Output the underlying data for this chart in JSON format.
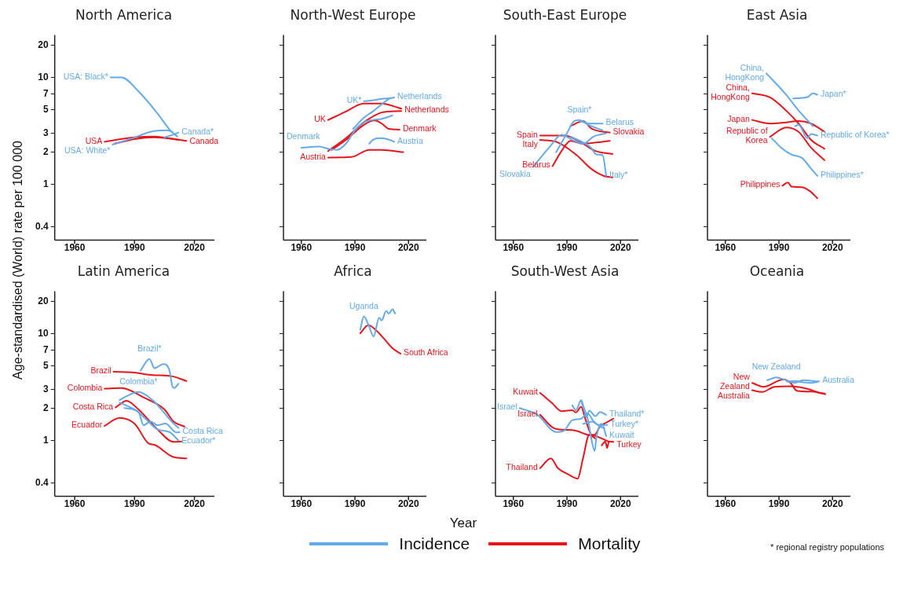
{
  "chart_data": [
    {
      "type": "line",
      "title": "North America",
      "ylabel": "Age-standardised (World) rate per 100 000",
      "xlim": [
        1950,
        2030
      ],
      "xticks": [
        1960,
        1990,
        2020
      ],
      "ylim": [
        0.3,
        25
      ],
      "yticks": [
        0.4,
        1,
        2,
        3,
        5,
        7,
        10,
        20
      ],
      "log": true,
      "series": [
        {
          "color": "#64aaea",
          "x": [
            1978,
            1983.5,
            1992,
            2001.5,
            2008.5,
            2011.5
          ],
          "values": [
            10,
            10,
            7.4,
            4.6,
            3.1,
            2.8
          ]
        },
        {
          "color": "#64aaea",
          "x": [
            1979,
            1989,
            1998,
            2006,
            2009
          ],
          "values": [
            2.35,
            2.7,
            3.1,
            3.2,
            3.1
          ]
        },
        {
          "color": "#64aaea",
          "x": [
            2005,
            2009,
            2012
          ],
          "values": [
            2.75,
            2.9,
            3.05
          ]
        },
        {
          "color": "#e8141c",
          "x": [
            1975,
            1990,
            2000,
            2012
          ],
          "values": [
            2.5,
            2.75,
            2.8,
            2.6
          ]
        },
        {
          "color": "#e8141c",
          "x": [
            1980,
            1990,
            2000,
            2010,
            2016
          ],
          "values": [
            2.4,
            2.65,
            2.75,
            2.65,
            2.55
          ]
        }
      ],
      "annotations": [
        {
          "text": "USA: Black*",
          "x": 1978,
          "y": 10
        },
        {
          "text": "USA: White*",
          "x": 1979,
          "y": 2.35
        },
        {
          "text": "Canada*",
          "x": 2012,
          "y": 3.05
        },
        {
          "text": "USA",
          "x": 1975,
          "y": 2.5
        },
        {
          "text": "Canada",
          "x": 2016,
          "y": 2.55
        }
      ]
    },
    {
      "type": "line",
      "title": "North-West Europe",
      "xlim": [
        1950,
        2030
      ],
      "xticks": [
        1960,
        1990,
        2020
      ],
      "ylim": [
        0.3,
        25
      ],
      "yticks": [
        0.4,
        1,
        2,
        3,
        5,
        7,
        10,
        20
      ],
      "log": true,
      "tick_labels": "x",
      "series": [
        {
          "color": "#64aaea",
          "x": [
            1995,
            2000,
            2005,
            2010
          ],
          "values": [
            6.0,
            6.1,
            6.3,
            6.4
          ]
        },
        {
          "color": "#64aaea",
          "x": [
            1989,
            1995,
            2000,
            2005,
            2009,
            2012
          ],
          "values": [
            3.3,
            4.2,
            4.8,
            5.6,
            6.3,
            6.5
          ]
        },
        {
          "color": "#64aaea",
          "x": [
            1960,
            1970,
            1975,
            1980,
            1985,
            1990,
            1995,
            2000,
            2005,
            2011
          ],
          "values": [
            2.2,
            2.25,
            2.15,
            2.1,
            2.4,
            3.2,
            3.8,
            4.0,
            4.1,
            4.4
          ]
        },
        {
          "color": "#64aaea",
          "x": [
            1998,
            2000,
            2004,
            2008,
            2012
          ],
          "values": [
            2.4,
            2.6,
            2.7,
            2.65,
            2.5
          ]
        },
        {
          "color": "#e8141c",
          "x": [
            1975,
            1985,
            1995,
            2005,
            2016
          ],
          "values": [
            4.0,
            4.8,
            5.7,
            5.7,
            5.1
          ]
        },
        {
          "color": "#e8141c",
          "x": [
            1975,
            1985,
            1995,
            2000,
            2005,
            2016
          ],
          "values": [
            2.05,
            2.7,
            3.8,
            4.3,
            4.7,
            4.85
          ]
        },
        {
          "color": "#e8141c",
          "x": [
            1977,
            1985,
            1995,
            2001,
            2005,
            2009,
            2015
          ],
          "values": [
            2.1,
            2.6,
            3.6,
            3.95,
            3.7,
            3.3,
            3.25
          ]
        },
        {
          "color": "#e8141c",
          "x": [
            1975,
            1988,
            1998,
            2005,
            2017
          ],
          "values": [
            1.78,
            1.8,
            2.1,
            2.1,
            2.0
          ]
        }
      ],
      "annotations": [
        {
          "text": "UK*",
          "x": 1995,
          "y": 6.0
        },
        {
          "text": "Netherlands",
          "x": 2012,
          "y": 6.5
        },
        {
          "text": "Denmark",
          "x": 1960,
          "y": 2.2
        },
        {
          "text": "Austria",
          "x": 2012,
          "y": 2.5
        },
        {
          "text": "UK",
          "x": 1975,
          "y": 4.0
        },
        {
          "text": "Netherlands",
          "x": 2016,
          "y": 4.85
        },
        {
          "text": "Denmark",
          "x": 2015,
          "y": 3.25
        },
        {
          "text": "Austria",
          "x": 1975,
          "y": 1.78
        }
      ]
    },
    {
      "type": "line",
      "title": "South-East Europe",
      "xlim": [
        1950,
        2030
      ],
      "xticks": [
        1960,
        1990,
        2020
      ],
      "ylim": [
        0.3,
        25
      ],
      "yticks": [
        0.4,
        1,
        2,
        3,
        5,
        7,
        10,
        20
      ],
      "log": true,
      "tick_labels": "x",
      "series": [
        {
          "color": "#64aaea",
          "x": [
            1971,
            1980,
            1987,
            1993,
            1999,
            2005,
            2012
          ],
          "values": [
            1.45,
            2.2,
            2.9,
            2.6,
            2.4,
            2.8,
            3.0
          ]
        },
        {
          "color": "#64aaea",
          "x": [
            1984,
            1990,
            1994,
            1997,
            2002,
            2010
          ],
          "values": [
            2.0,
            3.0,
            3.9,
            4.0,
            3.6,
            3.2
          ]
        },
        {
          "color": "#64aaea",
          "x": [
            1997,
            2003,
            2010
          ],
          "values": [
            3.9,
            3.7,
            3.7
          ]
        },
        {
          "color": "#64aaea",
          "x": [
            1992,
            2003.5,
            2006.5,
            2010,
            2012
          ],
          "values": [
            2.8,
            2.2,
            1.9,
            1.87,
            1.2
          ]
        },
        {
          "color": "#e8141c",
          "x": [
            1975,
            1989,
            1999,
            2006,
            2015.5
          ],
          "values": [
            2.86,
            2.86,
            2.4,
            2.05,
            1.92
          ]
        },
        {
          "color": "#e8141c",
          "x": [
            1975,
            1984,
            1995.5,
            2003.5,
            2010.5,
            2015.5
          ],
          "values": [
            2.6,
            2.5,
            1.87,
            1.4,
            1.2,
            1.16
          ]
        },
        {
          "color": "#e8141c",
          "x": [
            1982,
            1987,
            1992,
            1999,
            2014
          ],
          "values": [
            1.48,
            2.05,
            2.55,
            2.4,
            2.55
          ]
        },
        {
          "color": "#e8141c",
          "x": [
            1992,
            1999,
            2004,
            2014
          ],
          "values": [
            3.5,
            3.9,
            3.3,
            3.05
          ]
        }
      ],
      "annotations": [
        {
          "text": "Slovakia",
          "x": 1971,
          "y": 1.45
        },
        {
          "text": "Spain*",
          "x": 1997,
          "y": 4.0
        },
        {
          "text": "Belarus",
          "x": 2010,
          "y": 3.7
        },
        {
          "text": "Italy*",
          "x": 2012,
          "y": 1.2
        },
        {
          "text": "Spain",
          "x": 1975,
          "y": 2.86
        },
        {
          "text": "Italy",
          "x": 1975,
          "y": 2.6
        },
        {
          "text": "Belarus",
          "x": 1982,
          "y": 1.48
        },
        {
          "text": "Slovakia",
          "x": 2014,
          "y": 3.05
        }
      ]
    },
    {
      "type": "line",
      "title": "East Asia",
      "xlim": [
        1950,
        2030
      ],
      "xticks": [
        1960,
        1990,
        2020
      ],
      "ylim": [
        0.3,
        25
      ],
      "yticks": [
        0.4,
        1,
        2,
        3,
        5,
        7,
        10,
        20
      ],
      "log": true,
      "tick_labels": "x",
      "series": [
        {
          "color": "#64aaea",
          "x": [
            1983,
            1994,
            2001,
            2009
          ],
          "values": [
            10.9,
            6.9,
            4.9,
            3.5
          ]
        },
        {
          "color": "#64aaea",
          "x": [
            1998,
            2006,
            2009,
            2011.5
          ],
          "values": [
            6.35,
            6.55,
            7.1,
            6.9
          ]
        },
        {
          "color": "#64aaea",
          "x": [
            1999,
            2001,
            2006,
            2008,
            2011.5
          ],
          "values": [
            3.5,
            3.6,
            2.7,
            2.95,
            2.86
          ]
        },
        {
          "color": "#64aaea",
          "x": [
            1986,
            1991,
            1997,
            2003,
            2008,
            2011.5
          ],
          "values": [
            2.7,
            2.22,
            1.9,
            1.76,
            1.4,
            1.2
          ]
        },
        {
          "color": "#e8141c",
          "x": [
            1975,
            1985,
            1994,
            2001,
            2008,
            2015.5
          ],
          "values": [
            7.1,
            6.5,
            4.9,
            3.7,
            2.6,
            2.15
          ]
        },
        {
          "color": "#e8141c",
          "x": [
            1975,
            1985,
            1994,
            2001,
            2008,
            2015.5
          ],
          "values": [
            4.0,
            3.7,
            3.8,
            3.9,
            3.7,
            3.1
          ]
        },
        {
          "color": "#e8141c",
          "x": [
            1985,
            1994,
            2001,
            2008,
            2015.5
          ],
          "values": [
            2.78,
            3.4,
            3.1,
            2.2,
            1.68
          ]
        },
        {
          "color": "#e8141c",
          "x": [
            1992,
            1995,
            1997,
            2003,
            2007.5,
            2011.5
          ],
          "values": [
            0.97,
            1.04,
            0.95,
            0.94,
            0.86,
            0.74
          ]
        }
      ],
      "annotations": [
        {
          "text": "China, HongKong",
          "x": 1983,
          "y": 10.9
        },
        {
          "text": "Japan*",
          "x": 2011.5,
          "y": 6.9
        },
        {
          "text": "Republic of Korea*",
          "x": 2011.5,
          "y": 2.86
        },
        {
          "text": "Philippines*",
          "x": 2011.5,
          "y": 1.2
        },
        {
          "text": "China, HongKong",
          "x": 1975,
          "y": 7.1
        },
        {
          "text": "Japan",
          "x": 1975,
          "y": 4.0
        },
        {
          "text": "Republic of Korea",
          "x": 1985,
          "y": 2.78
        },
        {
          "text": "Philippines",
          "x": 1992,
          "y": 0.97
        }
      ]
    },
    {
      "type": "line",
      "title": "Latin America",
      "xlim": [
        1950,
        2030
      ],
      "xticks": [
        1960,
        1990,
        2020
      ],
      "ylim": [
        0.3,
        25
      ],
      "yticks": [
        0.4,
        1,
        2,
        3,
        5,
        7,
        10,
        20
      ],
      "log": true,
      "series": [
        {
          "color": "#64aaea",
          "x": [
            1993,
            1997.5,
            2000,
            2004.5,
            2007.5,
            2009,
            2010,
            2012
          ],
          "values": [
            4.5,
            5.8,
            4.75,
            5.2,
            4.5,
            3.2,
            3.1,
            3.4
          ]
        },
        {
          "color": "#64aaea",
          "x": [
            1982.5,
            1986,
            1992,
            1999,
            2003.5,
            2008.5,
            2012
          ],
          "values": [
            2.39,
            2.6,
            2.84,
            2.39,
            1.95,
            1.51,
            1.31
          ]
        },
        {
          "color": "#64aaea",
          "x": [
            1985,
            1992,
            1994.5,
            1998,
            2001.5,
            2005.5,
            2011,
            2012.5
          ],
          "values": [
            2.01,
            1.85,
            1.39,
            1.51,
            1.39,
            1.44,
            1.19,
            1.2
          ]
        },
        {
          "color": "#64aaea",
          "x": [
            1982.5,
            1991,
            1995.5,
            2001.5,
            2007.5,
            2012
          ],
          "values": [
            2.26,
            1.9,
            1.6,
            1.27,
            1.2,
            1.0
          ]
        },
        {
          "color": "#e8141c",
          "x": [
            1979.5,
            1988.5,
            1999,
            2008.5,
            2016
          ],
          "values": [
            4.4,
            4.35,
            4.1,
            4.0,
            3.6
          ]
        },
        {
          "color": "#e8141c",
          "x": [
            1975,
            1983.5,
            1994.5,
            2005,
            2009.5,
            2015
          ],
          "values": [
            3.06,
            3.09,
            2.53,
            1.95,
            1.51,
            1.35
          ]
        },
        {
          "color": "#e8141c",
          "x": [
            1980.5,
            1986,
            1992,
            2001.5,
            2009.5,
            2013.5
          ],
          "values": [
            2.04,
            2.35,
            1.95,
            1.27,
            0.97,
            0.98
          ]
        },
        {
          "color": "#e8141c",
          "x": [
            1975,
            1982.5,
            1990,
            1997,
            2000,
            2009.5,
            2016
          ],
          "values": [
            1.37,
            1.63,
            1.44,
            0.94,
            0.91,
            0.7,
            0.68
          ]
        }
      ],
      "annotations": [
        {
          "text": "Brazil*",
          "x": 1997.5,
          "y": 5.8
        },
        {
          "text": "Colombia*",
          "x": 1992,
          "y": 2.84
        },
        {
          "text": "Costa Rica",
          "x": 2012.5,
          "y": 1.2
        },
        {
          "text": "Ecuador*",
          "x": 2012,
          "y": 1.0
        },
        {
          "text": "Brazil",
          "x": 1979.5,
          "y": 4.4
        },
        {
          "text": "Colombia",
          "x": 1975,
          "y": 3.06
        },
        {
          "text": "Costa Rica",
          "x": 1980.5,
          "y": 2.04
        },
        {
          "text": "Ecuador",
          "x": 1975,
          "y": 1.37
        }
      ]
    },
    {
      "type": "line",
      "title": "Africa",
      "xlabel": "Year",
      "xlim": [
        1950,
        2030
      ],
      "xticks": [
        1960,
        1990,
        2020
      ],
      "ylim": [
        0.3,
        25
      ],
      "yticks": [
        0.4,
        1,
        2,
        3,
        5,
        7,
        10,
        20
      ],
      "log": true,
      "tick_labels": "x",
      "series": [
        {
          "color": "#64aaea",
          "x": [
            1993,
            1995,
            1997.5,
            2000.5,
            2003.5,
            2005,
            2007.5,
            2009,
            2011,
            2012.5
          ],
          "values": [
            10.9,
            14.5,
            12.2,
            9.4,
            14.1,
            13.3,
            16.3,
            15.4,
            16.9,
            15.4
          ]
        },
        {
          "color": "#e8141c",
          "x": [
            1993,
            1997.5,
            2001.5,
            2006.5,
            2011,
            2015.5
          ],
          "values": [
            10.1,
            12.0,
            10.9,
            8.9,
            7.3,
            6.5
          ]
        }
      ],
      "annotations": [
        {
          "text": "Uganda",
          "x": 1995,
          "y": 14.5
        },
        {
          "text": "South Africa",
          "x": 2015.5,
          "y": 6.5
        }
      ]
    },
    {
      "type": "line",
      "title": "South-West Asia",
      "xlim": [
        1950,
        2030
      ],
      "xticks": [
        1960,
        1990,
        2020
      ],
      "ylim": [
        0.3,
        25
      ],
      "yticks": [
        0.4,
        1,
        2,
        3,
        5,
        7,
        10,
        20
      ],
      "log": true,
      "tick_labels": "x",
      "series": [
        {
          "color": "#64aaea",
          "x": [
            1963.5,
            1973.5,
            1984,
            1988.5,
            1993,
            1998,
            2001.5,
            2005,
            2008.5,
            2011
          ],
          "values": [
            2.01,
            1.74,
            1.2,
            1.24,
            1.55,
            1.6,
            1.79,
            1.51,
            1.35,
            1.3
          ]
        },
        {
          "color": "#64aaea",
          "x": [
            1993,
            1995,
            1998,
            2001,
            2002.5,
            2006,
            2008.5,
            2012
          ],
          "values": [
            2.13,
            1.92,
            2.39,
            1.65,
            1.9,
            1.69,
            1.85,
            1.74
          ]
        },
        {
          "color": "#64aaea",
          "x": [
            1998,
            2002,
            2003.5,
            2005.5,
            2006.5,
            2009.5,
            2012
          ],
          "values": [
            2.32,
            1.51,
            1.07,
            0.8,
            1.07,
            1.43,
            1.1
          ]
        },
        {
          "color": "#64aaea",
          "x": [
            1999,
            2004,
            2008,
            2012.5
          ],
          "values": [
            1.43,
            1.5,
            1.4,
            1.4
          ]
        },
        {
          "color": "#e8141c",
          "x": [
            1975,
            1981.5,
            1987,
            1993,
            1995,
            1998,
            2000,
            2003.5,
            2006
          ],
          "values": [
            2.79,
            2.25,
            1.88,
            1.92,
            1.83,
            2.07,
            1.65,
            1.13,
            1.04
          ]
        },
        {
          "color": "#e8141c",
          "x": [
            1975,
            1982.5,
            1988.5,
            1994.5,
            2001.5,
            2006,
            2011.5,
            2013.5
          ],
          "values": [
            1.74,
            1.31,
            1.26,
            1.24,
            1.13,
            1.1,
            1.01,
            0.97
          ]
        },
        {
          "color": "#e8141c",
          "x": [
            1975,
            1981,
            1985,
            1991,
            1996,
            1999,
            2002.5,
            2005.5,
            2008.5,
            2012,
            2016
          ],
          "values": [
            0.55,
            0.68,
            0.55,
            0.48,
            0.44,
            0.68,
            1.13,
            1.13,
            1.35,
            1.47,
            1.6
          ]
        },
        {
          "color": "#e8141c",
          "x": [
            2009.5,
            2011.5,
            2012.5,
            2013.5,
            2016
          ],
          "values": [
            0.9,
            0.98,
            0.85,
            0.98,
            0.97
          ]
        }
      ],
      "annotations": [
        {
          "text": "Israel",
          "x": 1963.5,
          "y": 2.01
        },
        {
          "text": "Thailand*",
          "x": 2012,
          "y": 1.74
        },
        {
          "text": "Turkey*",
          "x": 2012.5,
          "y": 1.4
        },
        {
          "text": "Kuwait",
          "x": 2012,
          "y": 1.1
        },
        {
          "text": "Kuwait",
          "x": 1975,
          "y": 2.79
        },
        {
          "text": "Israel",
          "x": 1975,
          "y": 1.74
        },
        {
          "text": "Thailand",
          "x": 1975,
          "y": 0.55
        },
        {
          "text": "Turkey",
          "x": 2016,
          "y": 0.97
        }
      ]
    },
    {
      "type": "line",
      "title": "Oceania",
      "xlim": [
        1950,
        2030
      ],
      "xticks": [
        1960,
        1990,
        2020
      ],
      "ylim": [
        0.3,
        25
      ],
      "yticks": [
        0.4,
        1,
        2,
        3,
        5,
        7,
        10,
        20
      ],
      "log": true,
      "tick_labels": "x",
      "series": [
        {
          "color": "#64aaea",
          "x": [
            1983.5,
            1988.5,
            1994.5,
            1999,
            2003.5,
            2011.5
          ],
          "values": [
            3.67,
            3.89,
            3.63,
            3.46,
            3.67,
            3.57
          ]
        },
        {
          "color": "#64aaea",
          "x": [
            1994.5,
            1999,
            2003.5,
            2008.5,
            2012.5
          ],
          "values": [
            3.55,
            3.6,
            3.5,
            3.46,
            3.57
          ]
        },
        {
          "color": "#e8141c",
          "x": [
            1975,
            1981.5,
            1992.5,
            1996.5,
            2000,
            2008.5,
            2016
          ],
          "values": [
            3.46,
            3.18,
            3.73,
            3.46,
            2.92,
            2.87,
            2.71
          ]
        },
        {
          "color": "#e8141c",
          "x": [
            1975,
            1980.5,
            1987.5,
            1996.5,
            2006,
            2013,
            2015.5
          ],
          "values": [
            2.95,
            2.84,
            3.18,
            3.22,
            3.04,
            2.79,
            2.75
          ]
        }
      ],
      "annotations": [
        {
          "text": "New Zealand",
          "x": 1988.5,
          "y": 3.89
        },
        {
          "text": "Australia",
          "x": 2012.5,
          "y": 3.57
        },
        {
          "text": "New Zealand",
          "x": 1975,
          "y": 3.46
        },
        {
          "text": "Australia",
          "x": 1975,
          "y": 2.95
        }
      ]
    },
    {
      "type": "other",
      "categories": [
        "Incidence",
        "Mortality"
      ],
      "colors": [
        "#64aaea",
        "#e8141c"
      ],
      "annotations": [
        "* regional registry populations"
      ]
    }
  ]
}
